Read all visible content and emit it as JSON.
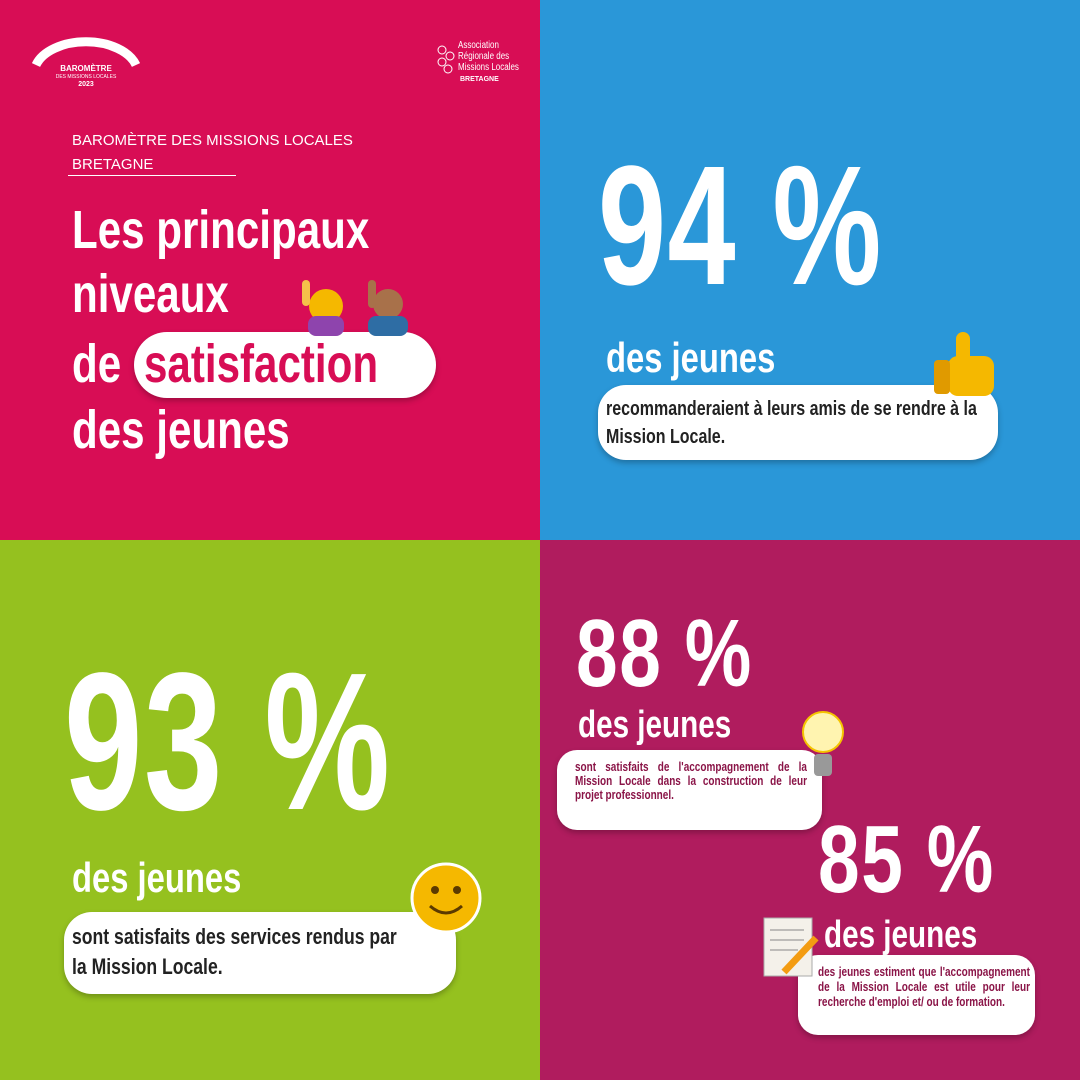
{
  "logo": {
    "title": "BAROMÈTRE",
    "subtitle": "DES MISSIONS LOCALES",
    "year": "2023"
  },
  "partner": {
    "lines": [
      "Association",
      "Régionale des",
      "Missions Locales"
    ],
    "region": "BRETAGNE"
  },
  "header": {
    "kicker": "BAROMÈTRE DES MISSIONS LOCALES",
    "region": "BRETAGNE",
    "title_lines": [
      "Les principaux",
      "niveaux",
      "de"
    ],
    "highlight": "satisfaction",
    "title_end": "des jeunes"
  },
  "stats": [
    {
      "figure": "94 %",
      "subject": "des jeunes",
      "text": "recommanderaient à leurs amis de se rendre à la Mission Locale."
    },
    {
      "figure": "93 %",
      "subject": "des jeunes",
      "text": "sont satisfaits des services rendus par la Mission Locale."
    },
    {
      "figure": "88 %",
      "subject": "des jeunes",
      "text": "sont satisfaits de l'accompagnement de la Mission Locale dans la construction de leur projet professionnel."
    },
    {
      "figure": "85 %",
      "subject": "des jeunes",
      "text": "des jeunes estiment que l'accompagnement de la Mission Locale est utile pour leur recherche d'emploi et/ ou de formation."
    }
  ]
}
